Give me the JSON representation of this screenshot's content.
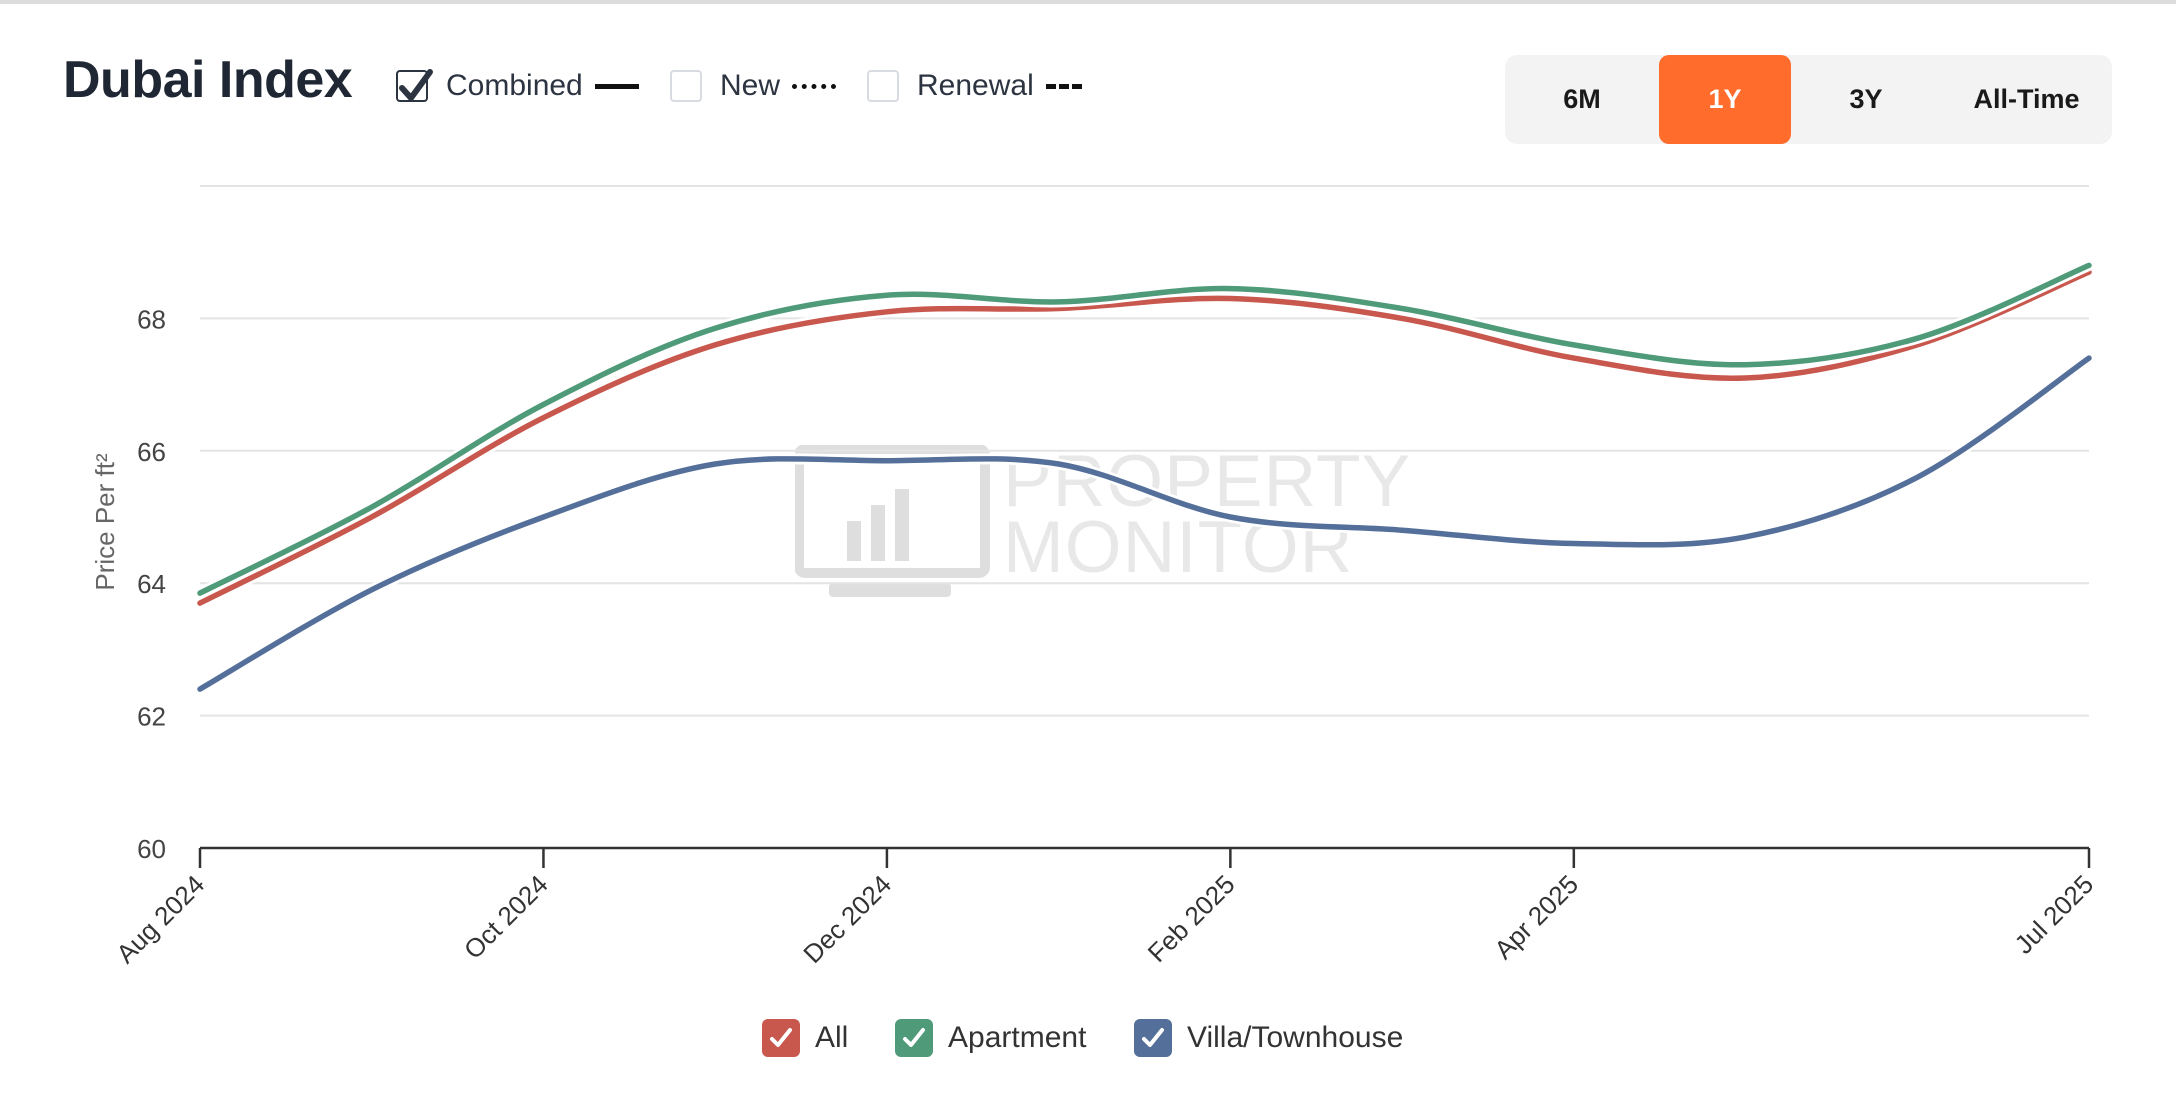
{
  "header": {
    "title": "Dubai Index",
    "filters": [
      {
        "label": "Combined",
        "checked": true,
        "line_style": "solid"
      },
      {
        "label": "New",
        "checked": false,
        "line_style": "dotted"
      },
      {
        "label": "Renewal",
        "checked": false,
        "line_style": "dashed"
      }
    ],
    "ranges": [
      {
        "label": "6M",
        "active": false
      },
      {
        "label": "1Y",
        "active": true
      },
      {
        "label": "3Y",
        "active": false
      },
      {
        "label": "All-Time",
        "active": false
      }
    ]
  },
  "watermark": {
    "line1": "PROPERTY",
    "line2": "MONITOR"
  },
  "legend": [
    {
      "label": "All",
      "color": "#c8574d",
      "checked": true
    },
    {
      "label": "Apartment",
      "color": "#4f9a78",
      "checked": true
    },
    {
      "label": "Villa/Townhouse",
      "color": "#54709a",
      "checked": true
    }
  ],
  "chart_data": {
    "type": "line",
    "title": "Dubai Index",
    "xlabel": "",
    "ylabel": "Price Per ft²",
    "ylim": [
      60,
      70
    ],
    "yticks": [
      60,
      62,
      64,
      66,
      68
    ],
    "x_range": [
      0,
      11
    ],
    "x_ticks": [
      {
        "x": 0,
        "label": "Aug 2024"
      },
      {
        "x": 2,
        "label": "Oct 2024"
      },
      {
        "x": 4,
        "label": "Dec 2024"
      },
      {
        "x": 6,
        "label": "Feb 2025"
      },
      {
        "x": 8,
        "label": "Apr 2025"
      },
      {
        "x": 11,
        "label": "Jul 2025"
      }
    ],
    "series": [
      {
        "name": "All",
        "color": "#c8574d",
        "points": [
          [
            0,
            63.7
          ],
          [
            1,
            65.0
          ],
          [
            2,
            66.5
          ],
          [
            3,
            67.6
          ],
          [
            4,
            68.1
          ],
          [
            5,
            68.15
          ],
          [
            6,
            68.3
          ],
          [
            7,
            68.0
          ],
          [
            8,
            67.4
          ],
          [
            9,
            67.1
          ],
          [
            10,
            67.6
          ],
          [
            11,
            68.7
          ]
        ]
      },
      {
        "name": "Apartment",
        "color": "#4f9a78",
        "points": [
          [
            0,
            63.85
          ],
          [
            1,
            65.15
          ],
          [
            2,
            66.7
          ],
          [
            3,
            67.85
          ],
          [
            4,
            68.35
          ],
          [
            5,
            68.25
          ],
          [
            6,
            68.45
          ],
          [
            7,
            68.15
          ],
          [
            8,
            67.6
          ],
          [
            9,
            67.3
          ],
          [
            10,
            67.7
          ],
          [
            11,
            68.8
          ]
        ]
      },
      {
        "name": "Villa/Townhouse",
        "color": "#54709a",
        "points": [
          [
            0,
            62.4
          ],
          [
            1,
            63.9
          ],
          [
            2,
            65.0
          ],
          [
            3,
            65.8
          ],
          [
            4,
            65.85
          ],
          [
            5,
            65.8
          ],
          [
            6,
            65.0
          ],
          [
            7,
            64.8
          ],
          [
            8,
            64.6
          ],
          [
            9,
            64.7
          ],
          [
            10,
            65.6
          ],
          [
            11,
            67.4
          ]
        ]
      }
    ]
  }
}
